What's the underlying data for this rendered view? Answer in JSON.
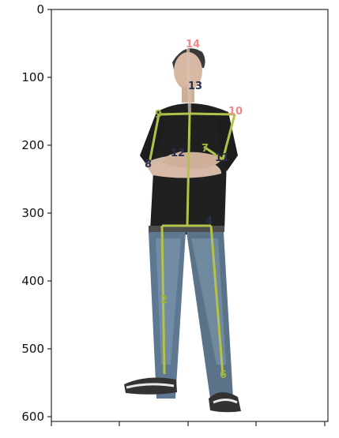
{
  "figure": {
    "y_axis": {
      "ticks": [
        "0",
        "100",
        "200",
        "300",
        "400",
        "500",
        "600"
      ],
      "range": [
        0,
        610
      ]
    },
    "x_axis": {
      "tick_labels_visible": false
    },
    "colors": {
      "skeleton_line": "#b5c24a",
      "skeleton_line_faint": "#d6c3b4",
      "label_pink": "#f08a8a",
      "label_dark": "#26304d",
      "label_green": "#9db43a"
    },
    "keypoint_labels": [
      {
        "text": "14",
        "color_key": "label_pink"
      },
      {
        "text": "13",
        "color_key": "label_dark"
      },
      {
        "text": "10",
        "color_key": "label_pink"
      },
      {
        "text": "9",
        "color_key": "label_green"
      },
      {
        "text": "12",
        "color_key": "label_dark"
      },
      {
        "text": "7",
        "color_key": "label_green"
      },
      {
        "text": "11",
        "color_key": "label_dark"
      },
      {
        "text": "8",
        "color_key": "label_dark"
      },
      {
        "text": "4",
        "color_key": "label_dark"
      },
      {
        "text": "2",
        "color_key": "label_green"
      },
      {
        "text": "6",
        "color_key": "label_green"
      }
    ]
  }
}
